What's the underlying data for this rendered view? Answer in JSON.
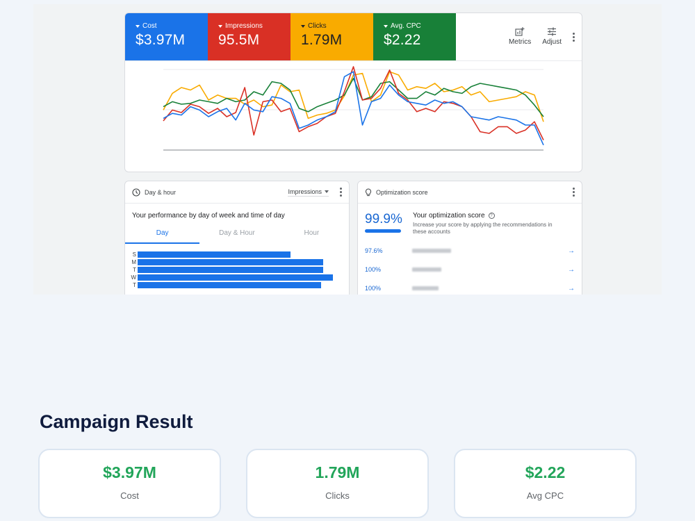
{
  "metrics": [
    {
      "label": "Cost",
      "value": "$3.97M",
      "color": "#1a73e8"
    },
    {
      "label": "Impressions",
      "value": "95.5M",
      "color": "#d93025"
    },
    {
      "label": "Clicks",
      "value": "1.79M",
      "color": "#f9ab00"
    },
    {
      "label": "Avg. CPC",
      "value": "$2.22",
      "color": "#188038"
    }
  ],
  "toolbar": {
    "metrics_label": "Metrics",
    "adjust_label": "Adjust"
  },
  "chart_data": {
    "type": "line",
    "title": "",
    "xlabel": "",
    "ylabel": "",
    "ylim": [
      0,
      100
    ],
    "grid": true,
    "series": [
      {
        "color": "#f9ab00",
        "values": [
          48,
          68,
          75,
          72,
          78,
          60,
          66,
          62,
          62,
          55,
          60,
          52,
          54,
          78,
          70,
          72,
          38,
          42,
          44,
          48,
          65,
          90,
          92,
          58,
          66,
          94,
          90,
          72,
          76,
          74,
          80,
          70,
          72,
          76,
          66,
          70,
          58,
          60,
          62,
          64,
          70,
          66,
          34
        ]
      },
      {
        "color": "#188038",
        "values": [
          52,
          58,
          55,
          56,
          60,
          58,
          56,
          62,
          58,
          60,
          70,
          66,
          82,
          80,
          72,
          50,
          46,
          52,
          56,
          60,
          66,
          86,
          60,
          64,
          80,
          82,
          72,
          62,
          62,
          70,
          66,
          74,
          70,
          68,
          76,
          80,
          78,
          76,
          74,
          72,
          66,
          54,
          40
        ]
      },
      {
        "color": "#d93025",
        "values": [
          35,
          48,
          45,
          55,
          52,
          44,
          50,
          40,
          45,
          75,
          18,
          58,
          60,
          46,
          50,
          22,
          28,
          32,
          40,
          44,
          70,
          100,
          60,
          62,
          74,
          96,
          68,
          60,
          46,
          50,
          46,
          58,
          56,
          52,
          40,
          22,
          20,
          28,
          28,
          20,
          24,
          34,
          12
        ]
      },
      {
        "color": "#1a73e8",
        "values": [
          38,
          44,
          42,
          52,
          48,
          40,
          46,
          50,
          36,
          56,
          48,
          46,
          64,
          62,
          56,
          26,
          30,
          36,
          40,
          46,
          88,
          94,
          30,
          58,
          62,
          78,
          66,
          58,
          56,
          54,
          60,
          56,
          58,
          52,
          40,
          38,
          36,
          40,
          38,
          36,
          30,
          30,
          6
        ]
      }
    ]
  },
  "day_hour": {
    "title": "Day & hour",
    "metric_select": "Impressions",
    "subtitle": "Your performance by day of week and time of day",
    "tabs": [
      "Day",
      "Day & Hour",
      "Hour"
    ],
    "days": [
      {
        "label": "S",
        "value": 76
      },
      {
        "label": "M",
        "value": 92
      },
      {
        "label": "T",
        "value": 92
      },
      {
        "label": "W",
        "value": 97
      },
      {
        "label": "T",
        "value": 91
      }
    ]
  },
  "optimization": {
    "title": "Optimization score",
    "score": "99.9%",
    "score_fraction": 0.999,
    "heading": "Your optimization score",
    "description": "Increase your score by applying the recommendations in these accounts",
    "accounts": [
      {
        "score": "97.6%"
      },
      {
        "score": "100%"
      },
      {
        "score": "100%"
      }
    ]
  },
  "campaign": {
    "title": "Campaign Result",
    "results": [
      {
        "value": "$3.97M",
        "label": "Cost"
      },
      {
        "value": "1.79M",
        "label": "Clicks"
      },
      {
        "value": "$2.22",
        "label": "Avg CPC"
      }
    ]
  }
}
